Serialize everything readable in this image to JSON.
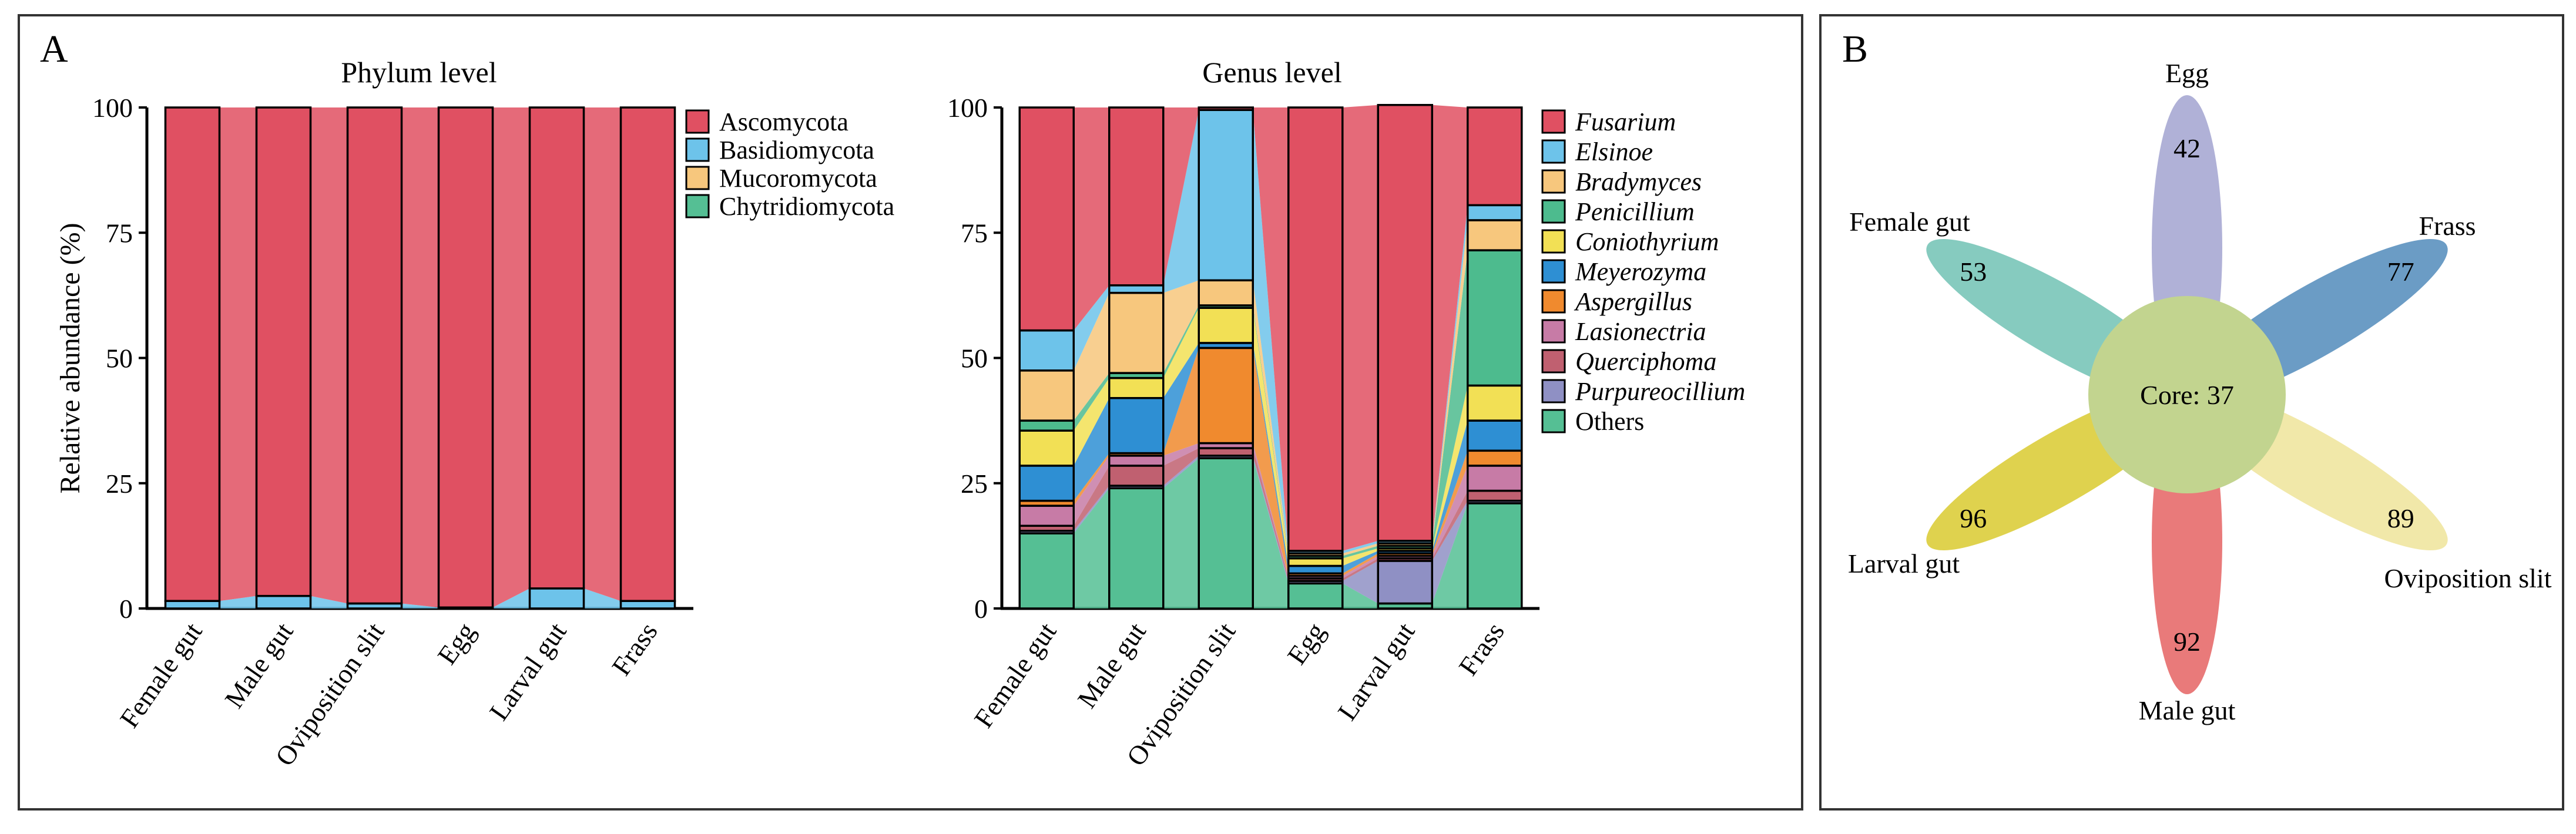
{
  "panels": {
    "a_label": "A",
    "b_label": "B"
  },
  "chart_data": [
    {
      "type": "bar",
      "stacked": true,
      "title": "Phylum level",
      "ylabel": "Relative abundance (%)",
      "ylim": [
        0,
        100
      ],
      "yticks": [
        0,
        25,
        50,
        75,
        100
      ],
      "categories": [
        "Female gut",
        "Male gut",
        "Oviposition slit",
        "Egg",
        "Larval gut",
        "Frass"
      ],
      "legend": "right",
      "series": [
        {
          "name": "Chytridiomycota",
          "color": "#55bf94",
          "values": [
            0,
            0,
            0,
            0,
            0,
            0
          ]
        },
        {
          "name": "Mucoromycota",
          "color": "#f7c77d",
          "values": [
            0,
            0,
            0,
            0,
            0,
            0
          ]
        },
        {
          "name": "Basidiomycota",
          "color": "#6dc3ea",
          "values": [
            1.5,
            2.5,
            1.0,
            0.2,
            4.0,
            1.5
          ]
        },
        {
          "name": "Ascomycota",
          "color": "#e05062",
          "values": [
            98.5,
            97.5,
            99.0,
            99.8,
            96.0,
            98.5
          ]
        }
      ]
    },
    {
      "type": "bar",
      "stacked": true,
      "title": "Genus level",
      "ylim": [
        0,
        100
      ],
      "yticks": [
        0,
        25,
        50,
        75,
        100
      ],
      "categories": [
        "Female gut",
        "Male gut",
        "Oviposition slit",
        "Egg",
        "Larval gut",
        "Frass"
      ],
      "legend": "right",
      "series": [
        {
          "name": "Others",
          "color": "#55bf94",
          "italic": false,
          "values": [
            15,
            24,
            30,
            5,
            1,
            21
          ]
        },
        {
          "name": "Purpureocillium",
          "color": "#8f90c4",
          "italic": true,
          "values": [
            0.5,
            0.5,
            0.5,
            0.5,
            8.5,
            0.5
          ]
        },
        {
          "name": "Querciphoma",
          "color": "#c06070",
          "italic": true,
          "values": [
            1,
            4,
            1.5,
            0.5,
            0.5,
            2
          ]
        },
        {
          "name": "Lasionectria",
          "color": "#c77ba6",
          "italic": true,
          "values": [
            4,
            2,
            1,
            0.5,
            0.5,
            5
          ]
        },
        {
          "name": "Aspergillus",
          "color": "#f08a2e",
          "italic": true,
          "values": [
            1,
            0.5,
            19,
            0.5,
            0.5,
            3
          ]
        },
        {
          "name": "Meyerozyma",
          "color": "#2e8fd3",
          "italic": true,
          "values": [
            7,
            11,
            1,
            1.5,
            0.5,
            6
          ]
        },
        {
          "name": "Coniothyrium",
          "color": "#f2e055",
          "italic": true,
          "values": [
            7,
            4,
            7,
            1.5,
            0.5,
            7
          ]
        },
        {
          "name": "Penicillium",
          "color": "#4dbb8e",
          "italic": true,
          "values": [
            2,
            1,
            0.5,
            0.5,
            0.5,
            27
          ]
        },
        {
          "name": "Bradymyces",
          "color": "#f7c77d",
          "italic": true,
          "values": [
            10,
            16,
            5,
            0.5,
            0.5,
            6
          ]
        },
        {
          "name": "Elsinoe",
          "color": "#6dc3ea",
          "italic": true,
          "values": [
            8,
            1.5,
            34,
            0.5,
            0.5,
            3
          ]
        },
        {
          "name": "Fusarium",
          "color": "#e05062",
          "italic": true,
          "values": [
            44.5,
            35.5,
            0.5,
            88.5,
            87,
            19.5
          ]
        }
      ],
      "legend_order": [
        "Fusarium",
        "Elsinoe",
        "Bradymyces",
        "Penicillium",
        "Coniothyrium",
        "Meyerozyma",
        "Aspergillus",
        "Lasionectria",
        "Querciphoma",
        "Purpureocillium",
        "Others"
      ]
    }
  ],
  "flower": {
    "core_label": "Core: 37",
    "petals": [
      {
        "name": "Egg",
        "count": "42",
        "color": "#a7a9d3"
      },
      {
        "name": "Frass",
        "count": "77",
        "color": "#5b91bf"
      },
      {
        "name": "Oviposition slit",
        "count": "89",
        "color": "#f0e6a0"
      },
      {
        "name": "Male gut",
        "count": "92",
        "color": "#e76b6b"
      },
      {
        "name": "Larval gut",
        "count": "96",
        "color": "#dccd3b"
      },
      {
        "name": "Female gut",
        "count": "53",
        "color": "#79c5b8"
      }
    ],
    "core_color": "#c2d48f"
  }
}
